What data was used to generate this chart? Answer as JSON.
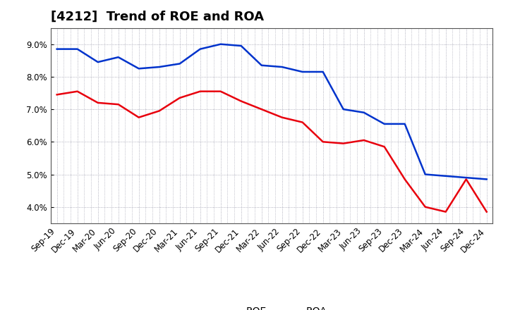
{
  "title": "[4212]  Trend of ROE and ROA",
  "x_labels": [
    "Sep-19",
    "Dec-19",
    "Mar-20",
    "Jun-20",
    "Sep-20",
    "Dec-20",
    "Mar-21",
    "Jun-21",
    "Sep-21",
    "Dec-21",
    "Mar-22",
    "Jun-22",
    "Sep-22",
    "Dec-22",
    "Mar-23",
    "Jun-23",
    "Sep-23",
    "Dec-23",
    "Mar-24",
    "Jun-24",
    "Sep-24",
    "Dec-24"
  ],
  "ROE": [
    7.45,
    7.55,
    7.2,
    7.15,
    6.75,
    6.95,
    7.35,
    7.55,
    7.55,
    7.25,
    7.0,
    6.75,
    6.6,
    6.0,
    5.95,
    6.05,
    5.85,
    4.85,
    4.0,
    3.85,
    4.85,
    3.85
  ],
  "ROA": [
    8.85,
    8.85,
    8.45,
    8.6,
    8.25,
    8.3,
    8.4,
    8.85,
    9.0,
    8.95,
    8.35,
    8.3,
    8.15,
    8.15,
    7.0,
    6.9,
    6.55,
    6.55,
    5.0,
    4.95,
    4.9,
    4.85
  ],
  "roe_color": "#e8000d",
  "roa_color": "#0033cc",
  "ylim": [
    3.5,
    9.5
  ],
  "yticks": [
    4.0,
    5.0,
    6.0,
    7.0,
    8.0,
    9.0
  ],
  "background_color": "#ffffff",
  "grid_color": "#9999aa",
  "title_fontsize": 13,
  "legend_fontsize": 10,
  "tick_fontsize": 8.5
}
